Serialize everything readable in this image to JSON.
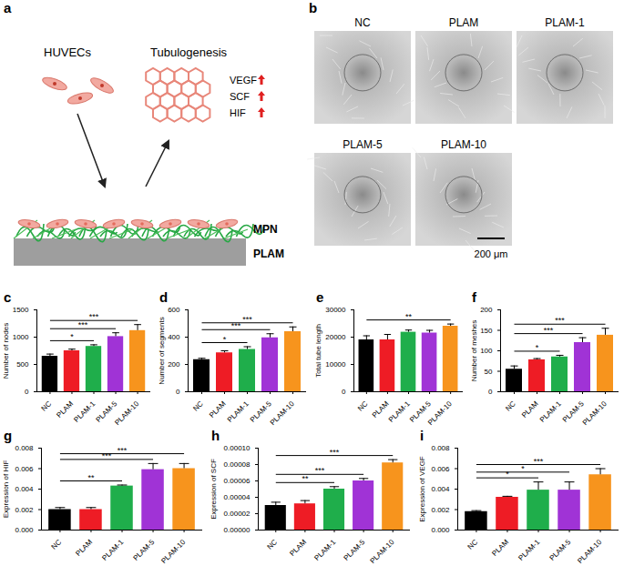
{
  "diagram": {
    "panel": "a",
    "cells": "HUVECs",
    "process": "Tubulogenesis",
    "markers": [
      "VEGF",
      "SCF",
      "HIF"
    ],
    "coating": "MPN",
    "substrate": "PLAM"
  },
  "micrographs": {
    "panel": "b",
    "images": [
      "NC",
      "PLAM",
      "PLAM-1",
      "PLAM-5",
      "PLAM-10"
    ],
    "scale_bar": "200 μm"
  },
  "chart_data": [
    {
      "panel": "c",
      "type": "bar",
      "y_label": "Number of nodes",
      "categories": [
        "NC",
        "PLAM",
        "PLAM-1",
        "PLAM-5",
        "PLAM-10"
      ],
      "values": [
        650,
        750,
        830,
        1010,
        1120
      ],
      "errors": [
        40,
        30,
        30,
        70,
        110
      ],
      "colors": [
        "#000000",
        "#ee1c25",
        "#1fae4b",
        "#a033d6",
        "#f7941d"
      ],
      "ylim": [
        0,
        1500
      ],
      "yticks": [
        0,
        500,
        1000,
        1500
      ],
      "annotations": [
        {
          "from": "NC",
          "to": "PLAM-1",
          "label": "*"
        },
        {
          "from": "NC",
          "to": "PLAM-5",
          "label": "***"
        },
        {
          "from": "NC",
          "to": "PLAM-10",
          "label": "***"
        }
      ]
    },
    {
      "panel": "d",
      "type": "bar",
      "y_label": "Number of segments",
      "categories": [
        "NC",
        "PLAM",
        "PLAM-1",
        "PLAM-5",
        "PLAM-10"
      ],
      "values": [
        235,
        285,
        310,
        395,
        440
      ],
      "errors": [
        10,
        15,
        20,
        30,
        35
      ],
      "colors": [
        "#000000",
        "#ee1c25",
        "#1fae4b",
        "#a033d6",
        "#f7941d"
      ],
      "ylim": [
        0,
        600
      ],
      "yticks": [
        0,
        200,
        400,
        600
      ],
      "annotations": [
        {
          "from": "NC",
          "to": "PLAM-1",
          "label": "*"
        },
        {
          "from": "NC",
          "to": "PLAM-5",
          "label": "***"
        },
        {
          "from": "NC",
          "to": "PLAM-10",
          "label": "***"
        }
      ]
    },
    {
      "panel": "e",
      "type": "bar",
      "y_label": "Total tube length",
      "categories": [
        "NC",
        "PLAM",
        "PLAM-1",
        "PLAM-5",
        "PLAM-10"
      ],
      "values": [
        19000,
        19000,
        21800,
        21500,
        24000
      ],
      "errors": [
        1500,
        2000,
        800,
        1000,
        800
      ],
      "colors": [
        "#000000",
        "#ee1c25",
        "#1fae4b",
        "#a033d6",
        "#f7941d"
      ],
      "ylim": [
        0,
        30000
      ],
      "yticks": [
        0,
        10000,
        20000,
        30000
      ],
      "annotations": [
        {
          "from": "NC",
          "to": "PLAM-10",
          "label": "**"
        }
      ]
    },
    {
      "panel": "f",
      "type": "bar",
      "y_label": "Number of meshes",
      "categories": [
        "NC",
        "PLAM",
        "PLAM-1",
        "PLAM-5",
        "PLAM-10"
      ],
      "values": [
        55,
        78,
        85,
        120,
        138
      ],
      "errors": [
        8,
        3,
        4,
        12,
        17
      ],
      "colors": [
        "#000000",
        "#ee1c25",
        "#1fae4b",
        "#a033d6",
        "#f7941d"
      ],
      "ylim": [
        0,
        200
      ],
      "yticks": [
        0,
        50,
        100,
        150,
        200
      ],
      "annotations": [
        {
          "from": "NC",
          "to": "PLAM-1",
          "label": "*"
        },
        {
          "from": "NC",
          "to": "PLAM-5",
          "label": "***"
        },
        {
          "from": "NC",
          "to": "PLAM-10",
          "label": "***"
        }
      ]
    },
    {
      "panel": "g",
      "type": "bar",
      "y_label": "Expression of HIF",
      "categories": [
        "NC",
        "PLAM",
        "PLAM-1",
        "PLAM-5",
        "PLAM-10"
      ],
      "values": [
        0.002,
        0.002,
        0.0043,
        0.0059,
        0.006
      ],
      "errors": [
        0.0002,
        0.0002,
        0.0001,
        0.0006,
        0.0005
      ],
      "colors": [
        "#000000",
        "#ee1c25",
        "#1fae4b",
        "#a033d6",
        "#f7941d"
      ],
      "ylim": [
        0,
        0.008
      ],
      "yticks": [
        {
          "value": 0,
          "label": "0.000"
        },
        {
          "value": 0.002,
          "label": "0.002"
        },
        {
          "value": 0.004,
          "label": "0.004"
        },
        {
          "value": 0.006,
          "label": "0.006"
        },
        {
          "value": 0.008,
          "label": "0.008"
        }
      ],
      "annotations": [
        {
          "from": "NC",
          "to": "PLAM-1",
          "label": "**"
        },
        {
          "from": "NC",
          "to": "PLAM-5",
          "label": "***"
        },
        {
          "from": "NC",
          "to": "PLAM-10",
          "label": "***"
        }
      ]
    },
    {
      "panel": "h",
      "type": "bar",
      "y_label": "Expression of SCF",
      "categories": [
        "NC",
        "PLAM",
        "PLAM-1",
        "PLAM-5",
        "PLAM-10"
      ],
      "values": [
        3e-05,
        3.2e-05,
        5e-05,
        6e-05,
        8.2e-05
      ],
      "errors": [
        4e-06,
        4e-06,
        3e-06,
        3e-06,
        4e-06
      ],
      "colors": [
        "#000000",
        "#ee1c25",
        "#1fae4b",
        "#a033d6",
        "#f7941d"
      ],
      "ylim": [
        0,
        0.0001
      ],
      "yticks": [
        {
          "value": 0,
          "label": "0.00000"
        },
        {
          "value": 2e-05,
          "label": "0.00002"
        },
        {
          "value": 4e-05,
          "label": "0.00004"
        },
        {
          "value": 6e-05,
          "label": "0.00006"
        },
        {
          "value": 8e-05,
          "label": "0.00008"
        },
        {
          "value": 0.0001,
          "label": "0.00010"
        }
      ],
      "annotations": [
        {
          "from": "NC",
          "to": "PLAM-1",
          "label": "**"
        },
        {
          "from": "NC",
          "to": "PLAM-5",
          "label": "***"
        },
        {
          "from": "NC",
          "to": "PLAM-10",
          "label": "***"
        }
      ]
    },
    {
      "panel": "i",
      "type": "bar",
      "y_label": "Expression of VEGF",
      "categories": [
        "NC",
        "PLAM",
        "PLAM-1",
        "PLAM-5",
        "PLAM-10"
      ],
      "values": [
        0.0018,
        0.0032,
        0.0039,
        0.0039,
        0.0054
      ],
      "errors": [
        0.0001,
        0.0001,
        0.0008,
        0.0008,
        0.0006
      ],
      "colors": [
        "#000000",
        "#ee1c25",
        "#1fae4b",
        "#a033d6",
        "#f7941d"
      ],
      "ylim": [
        0,
        0.008
      ],
      "yticks": [
        {
          "value": 0,
          "label": "0.000"
        },
        {
          "value": 0.002,
          "label": "0.002"
        },
        {
          "value": 0.004,
          "label": "0.004"
        },
        {
          "value": 0.006,
          "label": "0.006"
        },
        {
          "value": 0.008,
          "label": "0.008"
        }
      ],
      "annotations": [
        {
          "from": "NC",
          "to": "PLAM-1",
          "label": "*"
        },
        {
          "from": "NC",
          "to": "PLAM-5",
          "label": "*"
        },
        {
          "from": "NC",
          "to": "PLAM-10",
          "label": "***"
        }
      ]
    }
  ]
}
